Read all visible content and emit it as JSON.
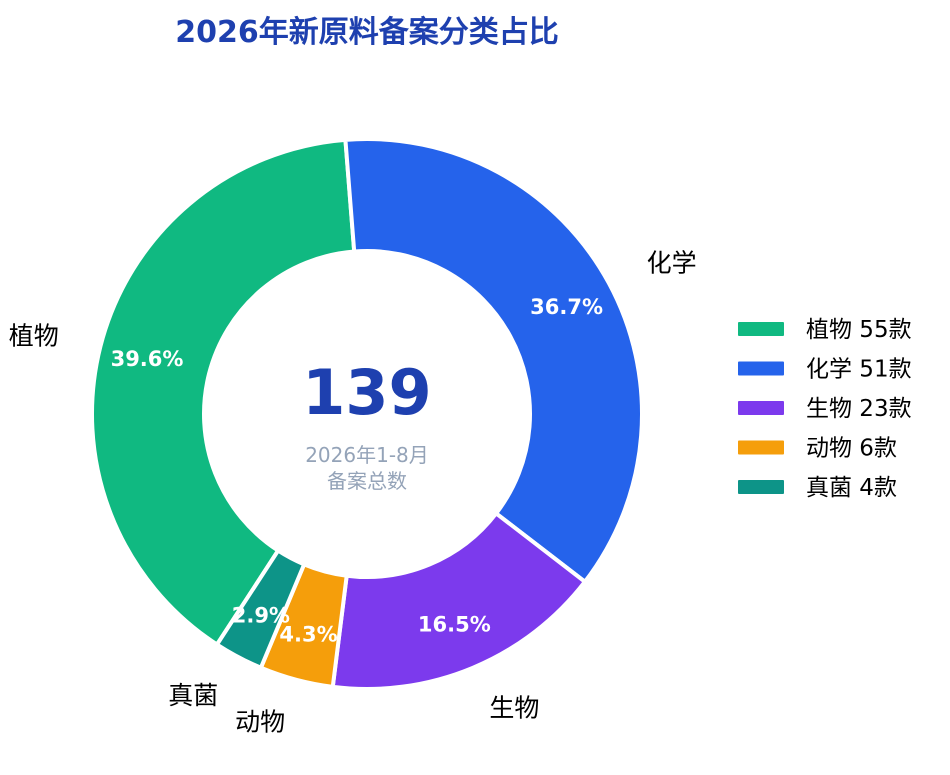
{
  "chart_data": {
    "type": "pie",
    "style": "donut",
    "title": "2026年新原料备案分类占比",
    "center": {
      "value": "139",
      "line1": "2026年1-8月",
      "line2": "备案总数"
    },
    "colors": {
      "title": "#1e40af",
      "center_value": "#1e40af",
      "center_caption": "#94a3b8",
      "labels": "#000000",
      "percent_text": "#ffffff",
      "slice_stroke": "#ffffff"
    },
    "legend_position": "right",
    "unit": "款",
    "slices": [
      {
        "label": "植物",
        "value": 55,
        "percent": "39.6%",
        "color": "#10b981"
      },
      {
        "label": "化学",
        "value": 51,
        "percent": "36.7%",
        "color": "#2563eb"
      },
      {
        "label": "生物",
        "value": 23,
        "percent": "16.5%",
        "color": "#7c3aed"
      },
      {
        "label": "动物",
        "value": 6,
        "percent": "4.3%",
        "color": "#f59e0b"
      },
      {
        "label": "真菌",
        "value": 4,
        "percent": "2.9%",
        "color": "#0d9488"
      }
    ]
  }
}
